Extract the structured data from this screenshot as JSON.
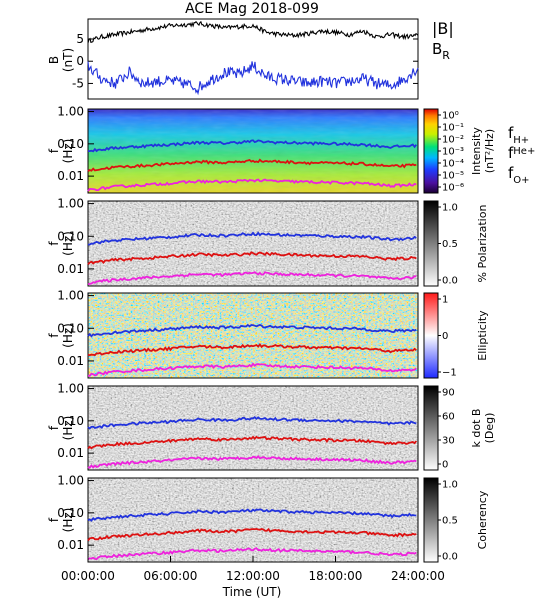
{
  "title": "ACE Mag 2018-099",
  "x_axis": {
    "label": "Time (UT)",
    "ticks": [
      "00:00:00",
      "06:00:00",
      "12:00:00",
      "18:00:00",
      "24:00:00"
    ],
    "range_hours": [
      0,
      24
    ]
  },
  "legends": {
    "field": [
      {
        "label": "|B|",
        "color": "#000000"
      },
      {
        "label": "B",
        "sub": "R",
        "color": "#2233dd"
      }
    ],
    "gyro": [
      {
        "label": "f",
        "sub": "H+",
        "color": "#2233dd"
      },
      {
        "label": "f",
        "sub": "He+",
        "color": "#dd1111"
      },
      {
        "label": "f",
        "sub": "O+",
        "color": "#ee22dd"
      }
    ]
  },
  "colors": {
    "btot": "#000000",
    "br": "#2233dd",
    "f_h": "#2233dd",
    "f_he": "#dd1111",
    "f_o": "#ee22dd"
  },
  "panels": {
    "p1": {
      "ylabel": "B",
      "yunit": "(nT)",
      "yticks": [
        "5",
        "0",
        "-5"
      ],
      "ylim": [
        -8.5,
        9.5
      ]
    },
    "p2": {
      "ylabel": "f",
      "yunit": "(Hz)",
      "yticks": [
        "1.00",
        "0.10",
        "0.01"
      ],
      "cb_ticks": [
        "10⁰",
        "10⁻¹",
        "10⁻²",
        "10⁻³",
        "10⁻⁴",
        "10⁻⁵",
        "10⁻⁶"
      ],
      "cb_label": "Intensity",
      "cb_unit": "(nT²/Hz)"
    },
    "p3": {
      "ylabel": "f",
      "yunit": "(Hz)",
      "yticks": [
        "1.00",
        "0.10",
        "0.01"
      ],
      "cb_ticks": [
        "1.0",
        "0.5",
        "0.0"
      ],
      "cb_label": "% Polarization"
    },
    "p4": {
      "ylabel": "f",
      "yunit": "(Hz)",
      "yticks": [
        "1.00",
        "0.10",
        "0.01"
      ],
      "cb_ticks": [
        "1",
        "0",
        "−1"
      ],
      "cb_label": "Ellipticity"
    },
    "p5": {
      "ylabel": "f",
      "yunit": "(Hz)",
      "yticks": [
        "1.00",
        "0.10",
        "0.01"
      ],
      "cb_ticks": [
        "90",
        "60",
        "30",
        "0"
      ],
      "cb_label": "k dot B",
      "cb_unit": "(Deg)"
    },
    "p6": {
      "ylabel": "f",
      "yunit": "(Hz)",
      "yticks": [
        "1.00",
        "0.10",
        "0.01"
      ],
      "cb_ticks": [
        "1.0",
        "0.5",
        "0.0"
      ],
      "cb_label": "Coherency"
    }
  },
  "chart_data": [
    {
      "type": "line",
      "xlabel": "Time (UT)",
      "ylabel": "B (nT)",
      "ylim": [
        -8.5,
        9.5
      ],
      "x_hours": [
        0,
        1,
        2,
        3,
        4,
        5,
        6,
        7,
        8,
        9,
        10,
        11,
        12,
        13,
        14,
        15,
        16,
        17,
        18,
        19,
        20,
        21,
        22,
        23,
        24
      ],
      "series": [
        {
          "name": "|B|",
          "values": [
            4.5,
            5.5,
            6.0,
            6.5,
            7.0,
            7.5,
            8.0,
            8.2,
            8.5,
            8.0,
            7.5,
            7.8,
            8.0,
            6.5,
            6.0,
            5.8,
            6.2,
            6.8,
            6.5,
            6.0,
            6.8,
            5.5,
            6.0,
            5.5,
            5.8
          ]
        },
        {
          "name": "B_R",
          "values": [
            -1.0,
            -4.0,
            -5.0,
            -2.5,
            -5.0,
            -4.5,
            -4.5,
            -5.0,
            -6.0,
            -4.0,
            -2.5,
            -3.0,
            -1.0,
            -3.5,
            -4.0,
            -4.5,
            -5.0,
            -4.5,
            -5.0,
            -4.5,
            -4.0,
            -5.0,
            -5.5,
            -4.0,
            -1.5
          ]
        }
      ]
    },
    {
      "type": "heatmap",
      "title": "",
      "xlabel": "Time (UT)",
      "ylabel": "f (Hz)",
      "yscale": "log",
      "ylim": [
        0.003,
        1.2
      ],
      "colorbar": {
        "label": "Intensity (nT²/Hz)",
        "range": [
          1e-06,
          1
        ],
        "scale": "log"
      },
      "overlays": {
        "x_hours": [
          0,
          2,
          4,
          6,
          8,
          10,
          12,
          14,
          16,
          18,
          20,
          22,
          24
        ],
        "f_H+": [
          0.06,
          0.075,
          0.085,
          0.095,
          0.11,
          0.105,
          0.12,
          0.11,
          0.105,
          0.1,
          0.095,
          0.08,
          0.09
        ],
        "f_He+": [
          0.015,
          0.019,
          0.021,
          0.024,
          0.028,
          0.026,
          0.03,
          0.028,
          0.026,
          0.025,
          0.024,
          0.02,
          0.022
        ],
        "f_O+": [
          0.0037,
          0.0047,
          0.0053,
          0.006,
          0.0069,
          0.0066,
          0.0075,
          0.0069,
          0.0066,
          0.0063,
          0.006,
          0.005,
          0.0056
        ]
      }
    },
    {
      "type": "heatmap",
      "ylabel": "f (Hz)",
      "yscale": "log",
      "colorbar": {
        "label": "% Polarization",
        "range": [
          0,
          1
        ]
      }
    },
    {
      "type": "heatmap",
      "ylabel": "f (Hz)",
      "yscale": "log",
      "colorbar": {
        "label": "Ellipticity",
        "range": [
          -1,
          1
        ]
      }
    },
    {
      "type": "heatmap",
      "ylabel": "f (Hz)",
      "yscale": "log",
      "colorbar": {
        "label": "k dot B (Deg)",
        "range": [
          0,
          90
        ]
      }
    },
    {
      "type": "heatmap",
      "ylabel": "f (Hz)",
      "yscale": "log",
      "colorbar": {
        "label": "Coherency",
        "range": [
          0,
          1
        ]
      }
    }
  ]
}
